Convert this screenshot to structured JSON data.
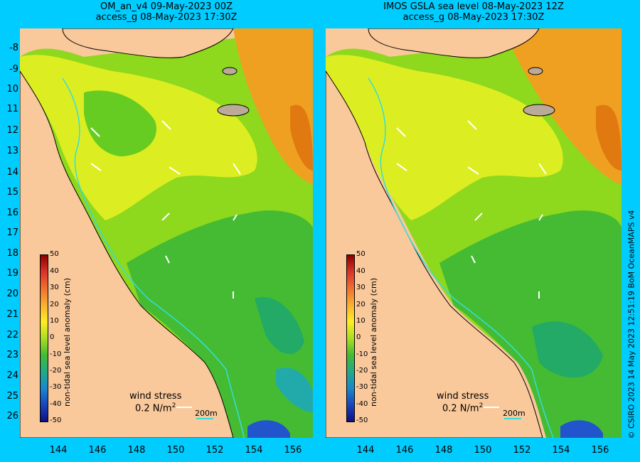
{
  "left_panel": {
    "title_line1": "OM_an_v4  09-May-2023 00Z",
    "title_line2": "access_g 08-May-2023 17:30Z"
  },
  "right_panel": {
    "title_line1": "IMOS GSLA sea level  08-May-2023 12Z",
    "title_line2": "access_g 08-May-2023 17:30Z"
  },
  "lat_ticks": [
    "-8",
    "-9",
    "10",
    "11",
    "12",
    "13",
    "14",
    "15",
    "16",
    "17",
    "18",
    "19",
    "20",
    "21",
    "22",
    "23",
    "24",
    "25",
    "26"
  ],
  "lon_ticks": [
    "144",
    "146",
    "148",
    "150",
    "152",
    "154",
    "156"
  ],
  "colorbar": {
    "title": "non-tidal sea level anomaly (cm)",
    "ticks": [
      "50",
      "40",
      "30",
      "20",
      "10",
      "0",
      "-10",
      "-20",
      "-30",
      "-40",
      "-50"
    ]
  },
  "wind_legend": {
    "label": "wind stress",
    "value": "0.2 N/m",
    "superscript": "2"
  },
  "scale_bar": {
    "label": "200m"
  },
  "credit": "© CSIRO 2023   14 May 2023 12:51:19 BoM OceanMAPS v4",
  "colors": {
    "background": "#00ccff",
    "land": "#f9c89b",
    "ocean_green": "#66cc22",
    "ocean_yellow": "#ddee22",
    "ocean_orange": "#f0a020",
    "ocean_blue": "#2244cc"
  }
}
